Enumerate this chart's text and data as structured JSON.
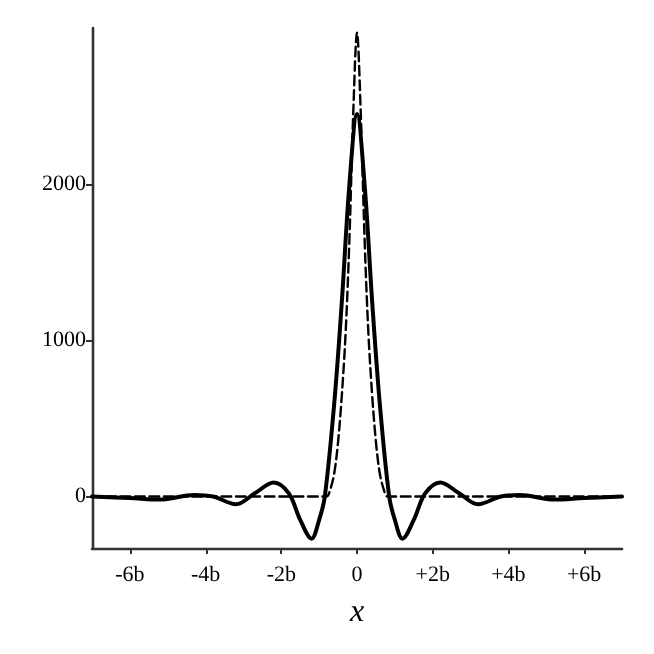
{
  "chart_data": {
    "type": "line",
    "xlabel": "x",
    "xlim": [
      -7,
      7
    ],
    "ylim": [
      -330,
      3000
    ],
    "xticks": [
      {
        "value": -6,
        "label": "-6b"
      },
      {
        "value": -4,
        "label": "-4b"
      },
      {
        "value": -2,
        "label": "-2b"
      },
      0,
      {
        "value": 2,
        "label": "+2b"
      },
      {
        "value": 4,
        "label": "+4b"
      },
      {
        "value": 6,
        "label": "+6b"
      }
    ],
    "yticks": [
      0,
      1000,
      2000
    ],
    "grid": false,
    "marker": "none",
    "series": [
      {
        "color": "#000000",
        "line_style": "solid",
        "x": [
          -7,
          -6,
          -5.2,
          -4.3,
          -3.8,
          -3.2,
          -2.7,
          -2.2,
          -1.8,
          -1.5,
          -1.2,
          -1,
          -0.85,
          -0.6,
          -0.4,
          -0.2,
          0,
          0.2,
          0.4,
          0.6,
          0.85,
          1,
          1.2,
          1.5,
          1.8,
          2.2,
          2.7,
          3.2,
          3.8,
          4.3,
          5.2,
          6,
          7
        ],
        "values": [
          0,
          -10,
          -20,
          10,
          0,
          -50,
          20,
          90,
          20,
          -150,
          -270,
          -150,
          0,
          600,
          1250,
          2000,
          2450,
          2000,
          1250,
          600,
          0,
          -150,
          -270,
          -150,
          20,
          90,
          20,
          -50,
          0,
          10,
          -20,
          -10,
          0
        ]
      },
      {
        "color": "#000000",
        "line_style": "dashed",
        "x": [
          -7,
          -0.9,
          -0.8,
          -0.7,
          -0.6,
          -0.5,
          -0.4,
          -0.3,
          -0.2,
          -0.1,
          0,
          0.1,
          0.2,
          0.3,
          0.4,
          0.5,
          0.6,
          0.7,
          0.8,
          0.9,
          7
        ],
        "values": [
          0,
          0,
          0,
          50,
          150,
          350,
          650,
          1050,
          1650,
          2450,
          2970,
          2450,
          1650,
          1050,
          650,
          350,
          150,
          50,
          0,
          0,
          0
        ]
      }
    ]
  }
}
